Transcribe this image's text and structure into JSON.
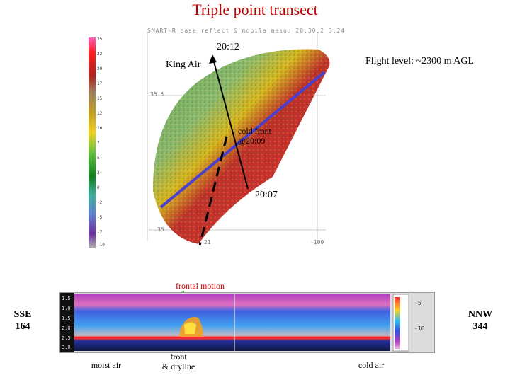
{
  "title": "Triple point transect",
  "radar": {
    "header": "SMART-R base reflect & mobile meso: 20:30:2 3:24",
    "colorbar_ticks": [
      "25",
      "22",
      "20",
      "17",
      "15",
      "12",
      "10",
      "7",
      "5",
      "2",
      "0",
      "-2",
      "-5",
      "-7",
      "-10"
    ],
    "lat_labels": [
      "35.5",
      "35"
    ],
    "lon_labels": [
      "21",
      "-100"
    ]
  },
  "annotations": {
    "time_top": "20:12",
    "aircraft": "King Air",
    "flight_level": "Flight level: ~2300 m  AGL",
    "cold_front_line1": "cold front",
    "cold_front_line2": "@20:09",
    "time_bottom": "20:07",
    "frontal_motion": "frontal motion"
  },
  "lidar": {
    "height_ticks": [
      "1.5",
      "1.0",
      "1.5",
      "2.0",
      "2.5",
      "3.0"
    ],
    "left_label_line1": "SSE",
    "left_label_line2": "164",
    "right_label_line1": "NNW",
    "right_label_line2": "344",
    "scale_labels": [
      "-5",
      "-10"
    ]
  },
  "captions": {
    "moist_air": "moist air",
    "front_line1": "front",
    "front_line2": "& dryline",
    "cold_air": "cold air"
  },
  "colors": {
    "title": "#c00000",
    "transect_line": "#4a3fd0",
    "frontal_arrow": "#22cc22"
  }
}
